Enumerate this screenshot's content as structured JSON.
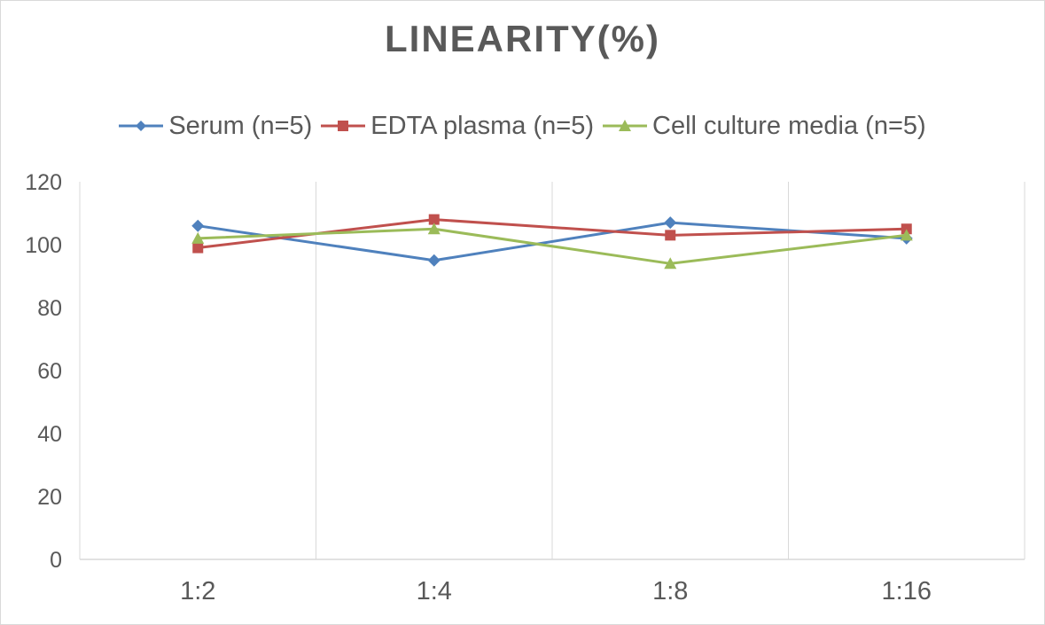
{
  "chart_data": {
    "type": "line",
    "title": "LINEARITY(%)",
    "categories": [
      "1:2",
      "1:4",
      "1:8",
      "1:16"
    ],
    "ylim": [
      0,
      120
    ],
    "yticks": [
      0,
      20,
      40,
      60,
      80,
      100,
      120
    ],
    "grid": "vertical",
    "legend_position": "top",
    "series": [
      {
        "name": "Serum (n=5)",
        "values": [
          106,
          95,
          107,
          102
        ],
        "color": "#4f81bd",
        "marker": "diamond"
      },
      {
        "name": "EDTA plasma (n=5)",
        "values": [
          99,
          108,
          103,
          105
        ],
        "color": "#c0504d",
        "marker": "square"
      },
      {
        "name": "Cell culture media (n=5)",
        "values": [
          102,
          105,
          94,
          103
        ],
        "color": "#9bbb59",
        "marker": "triangle"
      }
    ]
  }
}
